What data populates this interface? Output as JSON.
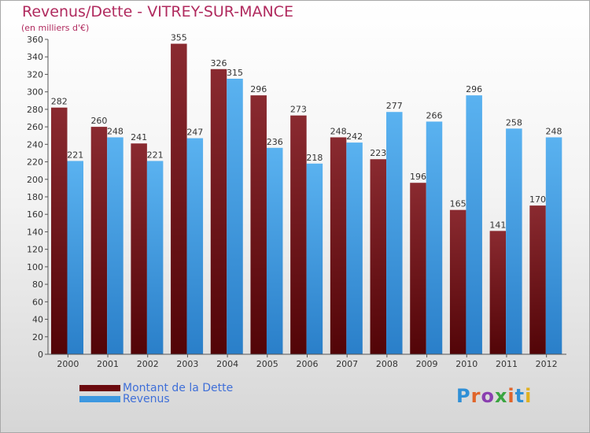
{
  "header": {
    "title": "Revenus/Dette - VITREY-SUR-MANCE",
    "subtitle": "(en milliers d'€)"
  },
  "legend": {
    "items": [
      {
        "label": "Montant de la Dette",
        "color": "#6b0a0e"
      },
      {
        "label": "Revenus",
        "color": "#3d98e0"
      }
    ]
  },
  "logo": {
    "text": "Proxiti",
    "letter_colors": [
      "#2f8fd6",
      "#e0652a",
      "#8a3fb0",
      "#3aa540",
      "#e0652a",
      "#2f8fd6",
      "#e0b020"
    ]
  },
  "chart_data": {
    "type": "bar",
    "title": "Revenus/Dette - VITREY-SUR-MANCE",
    "subtitle": "(en milliers d'€)",
    "categories": [
      "2000",
      "2001",
      "2002",
      "2003",
      "2004",
      "2005",
      "2006",
      "2007",
      "2008",
      "2009",
      "2010",
      "2011",
      "2012"
    ],
    "series": [
      {
        "name": "Montant de la Dette",
        "color": "#6b0a0e",
        "values": [
          282,
          260,
          241,
          355,
          326,
          296,
          273,
          248,
          223,
          196,
          165,
          141,
          170
        ]
      },
      {
        "name": "Revenus",
        "color": "#3d98e0",
        "values": [
          221,
          248,
          221,
          247,
          315,
          236,
          218,
          242,
          277,
          266,
          296,
          258,
          248
        ]
      }
    ],
    "ylim": [
      0,
      360
    ],
    "ytick_step": 20,
    "grid": false,
    "legend_position": "bottom-left",
    "data_labels": true
  }
}
